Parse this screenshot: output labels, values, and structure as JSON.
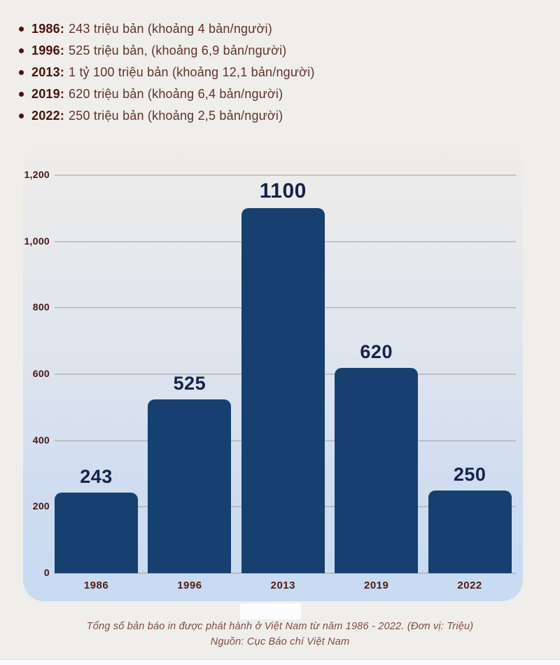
{
  "stats_list": {
    "items": [
      {
        "year": "1986:",
        "text": "243 triệu bản (khoảng 4 bản/người)"
      },
      {
        "year": "1996:",
        "text": "525 triệu bản, (khoảng 6,9 bản/người)"
      },
      {
        "year": "2013:",
        "text": "1 tỷ 100 triệu bản (khoảng 12,1 bản/người)"
      },
      {
        "year": "2019:",
        "text": "620 triệu bản (khoảng 6,4 bản/người)"
      },
      {
        "year": "2022:",
        "text": "250 triệu bản (khoảng 2,5 bản/người)"
      }
    ]
  },
  "chart_data": {
    "type": "bar",
    "categories": [
      "1986",
      "1996",
      "2013",
      "2019",
      "2022"
    ],
    "values": [
      243,
      525,
      1100,
      620,
      250
    ],
    "bar_labels": [
      "243",
      "525",
      "1100",
      "620",
      "250"
    ],
    "title": "",
    "xlabel": "",
    "ylabel": "",
    "ylim": [
      0,
      1200
    ],
    "yticks": [
      {
        "value": 0,
        "label": "0"
      },
      {
        "value": 200,
        "label": "200"
      },
      {
        "value": 400,
        "label": "400"
      },
      {
        "value": 600,
        "label": "600"
      },
      {
        "value": 800,
        "label": "800"
      },
      {
        "value": 1000,
        "label": "1,000"
      },
      {
        "value": 1200,
        "label": "1,200"
      }
    ],
    "grid": true,
    "legend": false,
    "bar_color": "#16406f",
    "value_label_color": "#15234a",
    "ytick_color": "#48150f",
    "xtick_color": "#521b12"
  },
  "caption": {
    "line1": "Tổng số bản báo in được phát hành ở Việt Nam từ năm 1986 - 2022. (Đơn vị: Triệu)",
    "line2": "Nguồn: Cục Báo chí Việt Nam"
  },
  "colors": {
    "page_background": "#f0eeeb",
    "card_gradient_top": "#efedeb",
    "card_gradient_bottom": "#c7dbf2",
    "bullet_year": "#4b130d",
    "bullet_text": "#5f332c",
    "caption_text": "#7c4e43"
  }
}
